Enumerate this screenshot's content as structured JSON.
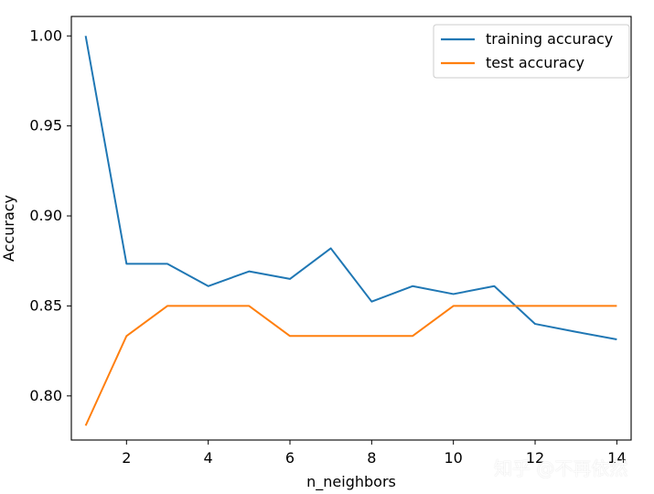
{
  "chart_data": {
    "type": "line",
    "title": "",
    "xlabel": "n_neighbors",
    "ylabel": "Accuracy",
    "xlim": [
      0.65,
      14.35
    ],
    "ylim": [
      0.7755,
      1.0108
    ],
    "x_ticks": [
      2,
      4,
      6,
      8,
      10,
      12,
      14
    ],
    "y_ticks": [
      0.8,
      0.85,
      0.9,
      0.95,
      1.0
    ],
    "y_tick_labels": [
      "0.80",
      "0.85",
      "0.90",
      "0.95",
      "1.00"
    ],
    "grid": false,
    "legend_position": "top-right",
    "x": [
      1,
      2,
      3,
      4,
      5,
      6,
      7,
      8,
      9,
      10,
      11,
      12,
      13,
      14
    ],
    "series": [
      {
        "name": "training accuracy",
        "color": "#1f77b4",
        "values": [
          1.0,
          0.8734,
          0.8734,
          0.861,
          0.8692,
          0.865,
          0.882,
          0.8524,
          0.861,
          0.8566,
          0.861,
          0.84,
          0.8356,
          0.8314
        ]
      },
      {
        "name": "test accuracy",
        "color": "#ff7f0e",
        "values": [
          0.7835,
          0.8333,
          0.85,
          0.85,
          0.85,
          0.8333,
          0.8333,
          0.8333,
          0.8333,
          0.85,
          0.85,
          0.85,
          0.85,
          0.85
        ]
      }
    ]
  },
  "watermark": {
    "text": "知乎 @不再依然"
  }
}
